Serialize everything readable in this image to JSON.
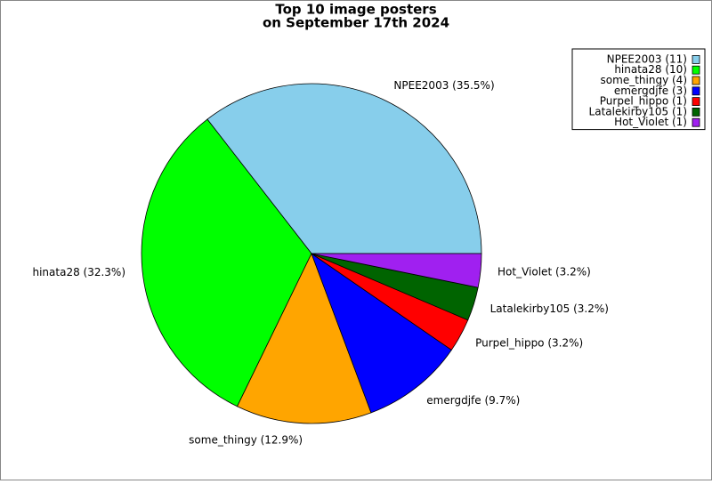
{
  "chart_data": {
    "type": "pie",
    "title": "Top 10 image posters",
    "subtitle": "on September 17th 2024",
    "categories": [
      "NPEE2003",
      "hinata28",
      "some_thingy",
      "emergdjfe",
      "Purpel_hippo",
      "Latalekirby105",
      "Hot_Violet"
    ],
    "values": [
      35.5,
      32.3,
      12.9,
      9.7,
      3.2,
      3.2,
      3.2
    ],
    "value_labels": [
      "NPEE2003 (35.5%)",
      "hinata28 (32.3%)",
      "some_thingy (12.9%)",
      "emergdjfe (9.7%)",
      "Purpel_hippo (3.2%)",
      "Latalekirby105 (3.2%)",
      "Hot_Violet (3.2%)"
    ],
    "legend_labels": [
      "NPEE2003 (11)",
      "hinata28 (10)",
      "some_thingy (4)",
      "emergdjfe (3)",
      "Purpel_hippo (1)",
      "Latalekirby105 (1)",
      "Hot_Violet (1)"
    ],
    "colors": [
      "#87ceeb",
      "#00ff00",
      "#ffa500",
      "#0000ff",
      "#ff0000",
      "#006400",
      "#a020f0"
    ],
    "legend": "upper right"
  }
}
